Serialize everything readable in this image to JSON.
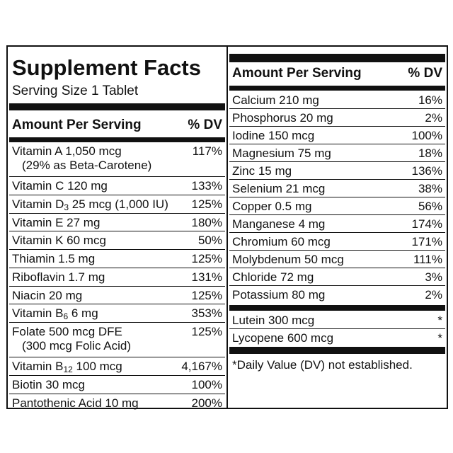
{
  "left": {
    "title": "Supplement Facts",
    "serving_size": "Serving Size 1 Tablet",
    "header_amount": "Amount Per Serving",
    "header_dv": "% DV",
    "rows": [
      {
        "name": "Vitamin A 1,050 mcg",
        "line2": "(29% as Beta-Carotene)",
        "dv": "117%"
      },
      {
        "name": "Vitamin C 120 mg",
        "dv": "133%"
      },
      {
        "name_pre": "Vitamin D",
        "name_sub": "3",
        "name_post": " 25 mcg (1,000 IU)",
        "dv": "125%"
      },
      {
        "name": "Vitamin E 27 mg",
        "dv": "180%"
      },
      {
        "name": "Vitamin K 60 mcg",
        "dv": "50%"
      },
      {
        "name": "Thiamin 1.5 mg",
        "dv": "125%"
      },
      {
        "name": "Riboflavin 1.7 mg",
        "dv": "131%"
      },
      {
        "name": "Niacin 20 mg",
        "dv": "125%"
      },
      {
        "name_pre": "Vitamin B",
        "name_sub": "6",
        "name_post": " 6 mg",
        "dv": "353%"
      },
      {
        "name": "Folate 500 mcg DFE",
        "line2": "(300 mcg Folic Acid)",
        "dv": "125%"
      },
      {
        "name_pre": "Vitamin B",
        "name_sub": "12",
        "name_post": " 100 mcg",
        "dv": "4,167%"
      },
      {
        "name": "Biotin 30 mcg",
        "dv": "100%"
      },
      {
        "name": "Pantothenic Acid 10 mg",
        "dv": "200%"
      }
    ]
  },
  "right": {
    "header_amount": "Amount Per Serving",
    "header_dv": "% DV",
    "rows": [
      {
        "name": "Calcium 210 mg",
        "dv": "16%"
      },
      {
        "name": "Phosphorus 20 mg",
        "dv": "2%"
      },
      {
        "name": "Iodine 150 mcg",
        "dv": "100%"
      },
      {
        "name": "Magnesium 75 mg",
        "dv": "18%"
      },
      {
        "name": "Zinc 15 mg",
        "dv": "136%"
      },
      {
        "name": "Selenium 21 mcg",
        "dv": "38%"
      },
      {
        "name": "Copper 0.5 mg",
        "dv": "56%"
      },
      {
        "name": "Manganese 4 mg",
        "dv": "174%"
      },
      {
        "name": "Chromium 60 mcg",
        "dv": "171%"
      },
      {
        "name": "Molybdenum 50 mcg",
        "dv": "111%"
      },
      {
        "name": "Chloride 72 mg",
        "dv": "3%"
      },
      {
        "name": "Potassium 80 mg",
        "dv": "2%"
      }
    ],
    "rows2": [
      {
        "name": "Lutein 300 mcg",
        "dv": "*"
      },
      {
        "name": "Lycopene 600 mcg",
        "dv": "*"
      }
    ],
    "footnote": "*Daily Value (DV) not established."
  }
}
